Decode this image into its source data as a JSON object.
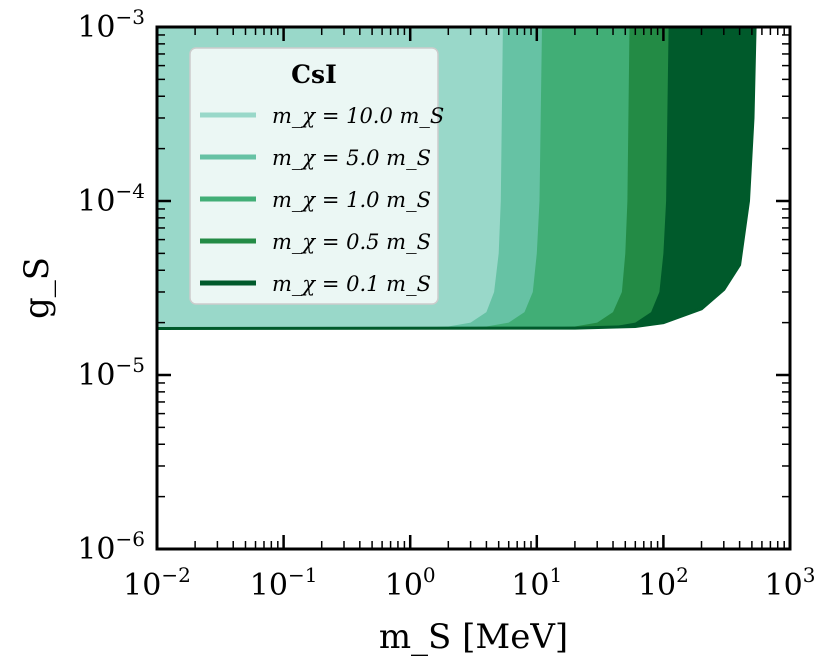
{
  "chart_data": {
    "type": "area",
    "title": "",
    "xlabel": "m_S [MeV]",
    "ylabel": "g_S",
    "xscale": "log",
    "yscale": "log",
    "xlim": [
      0.01,
      1000
    ],
    "ylim": [
      1e-06,
      0.001
    ],
    "x_ticks": [
      {
        "base": "10",
        "exp": "−2"
      },
      {
        "base": "10",
        "exp": "−1"
      },
      {
        "base": "10",
        "exp": "0"
      },
      {
        "base": "10",
        "exp": "1"
      },
      {
        "base": "10",
        "exp": "2"
      },
      {
        "base": "10",
        "exp": "3"
      }
    ],
    "y_ticks": [
      {
        "base": "10",
        "exp": "−6"
      },
      {
        "base": "10",
        "exp": "−5"
      },
      {
        "base": "10",
        "exp": "−4"
      },
      {
        "base": "10",
        "exp": "−3"
      }
    ],
    "grid": false,
    "legend": {
      "title": "CsI",
      "placement": "top-left",
      "entries": [
        "m_χ = 10.0 m_S",
        "m_χ = 5.0 m_S",
        "m_χ = 1.0 m_S",
        "m_χ = 0.5 m_S",
        "m_χ = 0.1 m_S"
      ]
    },
    "series": [
      {
        "name": "m_χ = 10.0 m_S",
        "color": "#99d8c9",
        "g_floor": 1.85e-05,
        "m_max": 5.2,
        "boundary": [
          [
            0.01,
            1.85e-05
          ],
          [
            1,
            1.86e-05
          ],
          [
            2,
            1.9e-05
          ],
          [
            3,
            2e-05
          ],
          [
            4,
            2.3e-05
          ],
          [
            4.6,
            3e-05
          ],
          [
            5.0,
            5e-05
          ],
          [
            5.2,
            0.0001
          ],
          [
            5.4,
            0.001
          ]
        ]
      },
      {
        "name": "m_χ = 5.0 m_S",
        "color": "#66c2a4",
        "g_floor": 1.85e-05,
        "m_max": 10.5,
        "boundary": [
          [
            0.01,
            1.85e-05
          ],
          [
            2,
            1.86e-05
          ],
          [
            4,
            1.9e-05
          ],
          [
            6,
            2e-05
          ],
          [
            8,
            2.3e-05
          ],
          [
            9.3,
            3e-05
          ],
          [
            10,
            5e-05
          ],
          [
            10.5,
            0.0001
          ],
          [
            11,
            0.001
          ]
        ]
      },
      {
        "name": "m_χ = 1.0 m_S",
        "color": "#41ae76",
        "g_floor": 1.85e-05,
        "m_max": 50,
        "boundary": [
          [
            0.01,
            1.85e-05
          ],
          [
            10,
            1.86e-05
          ],
          [
            20,
            1.9e-05
          ],
          [
            30,
            2e-05
          ],
          [
            40,
            2.3e-05
          ],
          [
            47,
            3e-05
          ],
          [
            50,
            5e-05
          ],
          [
            52,
            0.0001
          ],
          [
            54,
            0.001
          ]
        ]
      },
      {
        "name": "m_χ = 0.5 m_S",
        "color": "#238b45",
        "g_floor": 1.85e-05,
        "m_max": 100,
        "boundary": [
          [
            0.01,
            1.85e-05
          ],
          [
            20,
            1.86e-05
          ],
          [
            40,
            1.9e-05
          ],
          [
            60,
            2e-05
          ],
          [
            80,
            2.3e-05
          ],
          [
            93,
            3e-05
          ],
          [
            100,
            5e-05
          ],
          [
            105,
            0.0001
          ],
          [
            110,
            0.001
          ]
        ]
      },
      {
        "name": "m_χ = 0.1 m_S",
        "color": "#005a2b",
        "g_floor": 1.85e-05,
        "m_max": 500,
        "boundary": [
          [
            0.01,
            1.85e-05
          ],
          [
            20,
            1.86e-05
          ],
          [
            60,
            1.9e-05
          ],
          [
            100,
            2e-05
          ],
          [
            200,
            2.4e-05
          ],
          [
            300,
            3.1e-05
          ],
          [
            400,
            4.3e-05
          ],
          [
            470,
            0.0001
          ],
          [
            510,
            0.0003
          ],
          [
            530,
            0.001
          ]
        ]
      }
    ]
  }
}
